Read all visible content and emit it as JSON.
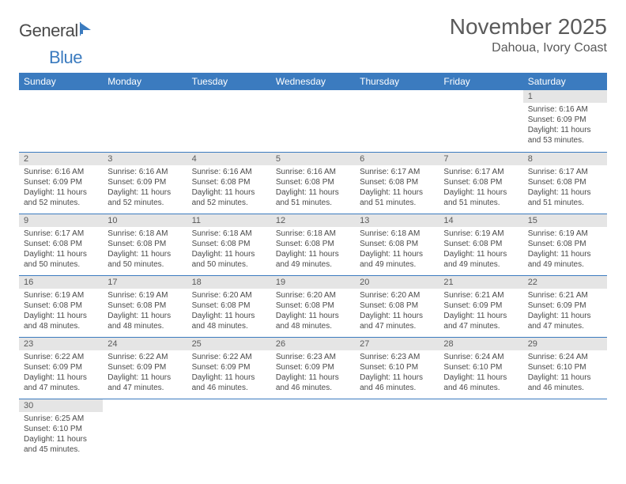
{
  "logo": {
    "general": "General",
    "blue": "Blue"
  },
  "title": "November 2025",
  "location": "Dahoua, Ivory Coast",
  "colors": {
    "header_bg": "#3b7bbf",
    "header_text": "#ffffff",
    "daynum_bg": "#e5e5e5",
    "text": "#4a4a4a",
    "border": "#3b7bbf"
  },
  "weekdays": [
    "Sunday",
    "Monday",
    "Tuesday",
    "Wednesday",
    "Thursday",
    "Friday",
    "Saturday"
  ],
  "weeks": [
    [
      null,
      null,
      null,
      null,
      null,
      null,
      {
        "n": "1",
        "sr": "6:16 AM",
        "ss": "6:09 PM",
        "dl": "11 hours and 53 minutes."
      }
    ],
    [
      {
        "n": "2",
        "sr": "6:16 AM",
        "ss": "6:09 PM",
        "dl": "11 hours and 52 minutes."
      },
      {
        "n": "3",
        "sr": "6:16 AM",
        "ss": "6:09 PM",
        "dl": "11 hours and 52 minutes."
      },
      {
        "n": "4",
        "sr": "6:16 AM",
        "ss": "6:08 PM",
        "dl": "11 hours and 52 minutes."
      },
      {
        "n": "5",
        "sr": "6:16 AM",
        "ss": "6:08 PM",
        "dl": "11 hours and 51 minutes."
      },
      {
        "n": "6",
        "sr": "6:17 AM",
        "ss": "6:08 PM",
        "dl": "11 hours and 51 minutes."
      },
      {
        "n": "7",
        "sr": "6:17 AM",
        "ss": "6:08 PM",
        "dl": "11 hours and 51 minutes."
      },
      {
        "n": "8",
        "sr": "6:17 AM",
        "ss": "6:08 PM",
        "dl": "11 hours and 51 minutes."
      }
    ],
    [
      {
        "n": "9",
        "sr": "6:17 AM",
        "ss": "6:08 PM",
        "dl": "11 hours and 50 minutes."
      },
      {
        "n": "10",
        "sr": "6:18 AM",
        "ss": "6:08 PM",
        "dl": "11 hours and 50 minutes."
      },
      {
        "n": "11",
        "sr": "6:18 AM",
        "ss": "6:08 PM",
        "dl": "11 hours and 50 minutes."
      },
      {
        "n": "12",
        "sr": "6:18 AM",
        "ss": "6:08 PM",
        "dl": "11 hours and 49 minutes."
      },
      {
        "n": "13",
        "sr": "6:18 AM",
        "ss": "6:08 PM",
        "dl": "11 hours and 49 minutes."
      },
      {
        "n": "14",
        "sr": "6:19 AM",
        "ss": "6:08 PM",
        "dl": "11 hours and 49 minutes."
      },
      {
        "n": "15",
        "sr": "6:19 AM",
        "ss": "6:08 PM",
        "dl": "11 hours and 49 minutes."
      }
    ],
    [
      {
        "n": "16",
        "sr": "6:19 AM",
        "ss": "6:08 PM",
        "dl": "11 hours and 48 minutes."
      },
      {
        "n": "17",
        "sr": "6:19 AM",
        "ss": "6:08 PM",
        "dl": "11 hours and 48 minutes."
      },
      {
        "n": "18",
        "sr": "6:20 AM",
        "ss": "6:08 PM",
        "dl": "11 hours and 48 minutes."
      },
      {
        "n": "19",
        "sr": "6:20 AM",
        "ss": "6:08 PM",
        "dl": "11 hours and 48 minutes."
      },
      {
        "n": "20",
        "sr": "6:20 AM",
        "ss": "6:08 PM",
        "dl": "11 hours and 47 minutes."
      },
      {
        "n": "21",
        "sr": "6:21 AM",
        "ss": "6:09 PM",
        "dl": "11 hours and 47 minutes."
      },
      {
        "n": "22",
        "sr": "6:21 AM",
        "ss": "6:09 PM",
        "dl": "11 hours and 47 minutes."
      }
    ],
    [
      {
        "n": "23",
        "sr": "6:22 AM",
        "ss": "6:09 PM",
        "dl": "11 hours and 47 minutes."
      },
      {
        "n": "24",
        "sr": "6:22 AM",
        "ss": "6:09 PM",
        "dl": "11 hours and 47 minutes."
      },
      {
        "n": "25",
        "sr": "6:22 AM",
        "ss": "6:09 PM",
        "dl": "11 hours and 46 minutes."
      },
      {
        "n": "26",
        "sr": "6:23 AM",
        "ss": "6:09 PM",
        "dl": "11 hours and 46 minutes."
      },
      {
        "n": "27",
        "sr": "6:23 AM",
        "ss": "6:10 PM",
        "dl": "11 hours and 46 minutes."
      },
      {
        "n": "28",
        "sr": "6:24 AM",
        "ss": "6:10 PM",
        "dl": "11 hours and 46 minutes."
      },
      {
        "n": "29",
        "sr": "6:24 AM",
        "ss": "6:10 PM",
        "dl": "11 hours and 46 minutes."
      }
    ],
    [
      {
        "n": "30",
        "sr": "6:25 AM",
        "ss": "6:10 PM",
        "dl": "11 hours and 45 minutes."
      },
      null,
      null,
      null,
      null,
      null,
      null
    ]
  ],
  "labels": {
    "sunrise": "Sunrise:",
    "sunset": "Sunset:",
    "daylight": "Daylight:"
  }
}
